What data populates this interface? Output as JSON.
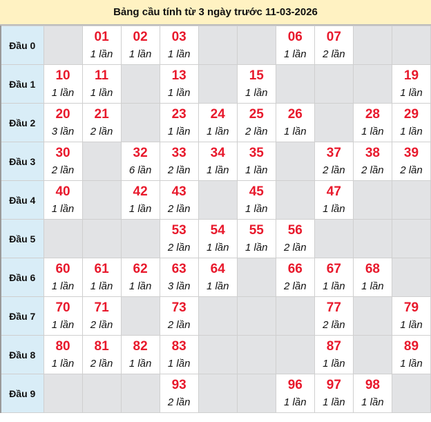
{
  "title": "Bảng cầu tính từ 3 ngày trước 11-03-2026",
  "colors": {
    "header_bg": "#fff2c2",
    "label_bg": "#d9edf7",
    "empty_bg": "#e2e3e5",
    "number": "#e8192c"
  },
  "rows": [
    {
      "label": "Đầu 0",
      "cells": [
        null,
        {
          "num": "01",
          "count": "1 lần"
        },
        {
          "num": "02",
          "count": "1 lần"
        },
        {
          "num": "03",
          "count": "1 lần"
        },
        null,
        null,
        {
          "num": "06",
          "count": "1 lần"
        },
        {
          "num": "07",
          "count": "2 lần"
        },
        null,
        null
      ]
    },
    {
      "label": "Đầu 1",
      "cells": [
        {
          "num": "10",
          "count": "1 lần"
        },
        {
          "num": "11",
          "count": "1 lần"
        },
        null,
        {
          "num": "13",
          "count": "1 lần"
        },
        null,
        {
          "num": "15",
          "count": "1 lần"
        },
        null,
        null,
        null,
        {
          "num": "19",
          "count": "1 lần"
        }
      ]
    },
    {
      "label": "Đầu 2",
      "cells": [
        {
          "num": "20",
          "count": "3 lần"
        },
        {
          "num": "21",
          "count": "2 lần"
        },
        null,
        {
          "num": "23",
          "count": "1 lần"
        },
        {
          "num": "24",
          "count": "1 lần"
        },
        {
          "num": "25",
          "count": "2 lần"
        },
        {
          "num": "26",
          "count": "1 lần"
        },
        null,
        {
          "num": "28",
          "count": "1 lần"
        },
        {
          "num": "29",
          "count": "1 lần"
        }
      ]
    },
    {
      "label": "Đầu 3",
      "cells": [
        {
          "num": "30",
          "count": "2 lần"
        },
        null,
        {
          "num": "32",
          "count": "6 lần"
        },
        {
          "num": "33",
          "count": "2 lần"
        },
        {
          "num": "34",
          "count": "1 lần"
        },
        {
          "num": "35",
          "count": "1 lần"
        },
        null,
        {
          "num": "37",
          "count": "2 lần"
        },
        {
          "num": "38",
          "count": "2 lần"
        },
        {
          "num": "39",
          "count": "2 lần"
        }
      ]
    },
    {
      "label": "Đầu 4",
      "cells": [
        {
          "num": "40",
          "count": "1 lần"
        },
        null,
        {
          "num": "42",
          "count": "1 lần"
        },
        {
          "num": "43",
          "count": "2 lần"
        },
        null,
        {
          "num": "45",
          "count": "1 lần"
        },
        null,
        {
          "num": "47",
          "count": "1 lần"
        },
        null,
        null
      ]
    },
    {
      "label": "Đầu 5",
      "cells": [
        null,
        null,
        null,
        {
          "num": "53",
          "count": "2 lần"
        },
        {
          "num": "54",
          "count": "1 lần"
        },
        {
          "num": "55",
          "count": "1 lần"
        },
        {
          "num": "56",
          "count": "2 lần"
        },
        null,
        null,
        null
      ]
    },
    {
      "label": "Đầu 6",
      "cells": [
        {
          "num": "60",
          "count": "1 lần"
        },
        {
          "num": "61",
          "count": "1 lần"
        },
        {
          "num": "62",
          "count": "1 lần"
        },
        {
          "num": "63",
          "count": "3 lần"
        },
        {
          "num": "64",
          "count": "1 lần"
        },
        null,
        {
          "num": "66",
          "count": "2 lần"
        },
        {
          "num": "67",
          "count": "1 lần"
        },
        {
          "num": "68",
          "count": "1 lần"
        },
        null
      ]
    },
    {
      "label": "Đầu 7",
      "cells": [
        {
          "num": "70",
          "count": "1 lần"
        },
        {
          "num": "71",
          "count": "2 lần"
        },
        null,
        {
          "num": "73",
          "count": "2 lần"
        },
        null,
        null,
        null,
        {
          "num": "77",
          "count": "2 lần"
        },
        null,
        {
          "num": "79",
          "count": "1 lần"
        }
      ]
    },
    {
      "label": "Đầu 8",
      "cells": [
        {
          "num": "80",
          "count": "1 lần"
        },
        {
          "num": "81",
          "count": "2 lần"
        },
        {
          "num": "82",
          "count": "1 lần"
        },
        {
          "num": "83",
          "count": "1 lần"
        },
        null,
        null,
        null,
        {
          "num": "87",
          "count": "1 lần"
        },
        null,
        {
          "num": "89",
          "count": "1 lần"
        }
      ]
    },
    {
      "label": "Đầu 9",
      "cells": [
        null,
        null,
        null,
        {
          "num": "93",
          "count": "2 lần"
        },
        null,
        null,
        {
          "num": "96",
          "count": "1 lần"
        },
        {
          "num": "97",
          "count": "1 lần"
        },
        {
          "num": "98",
          "count": "1 lần"
        },
        null
      ]
    }
  ]
}
